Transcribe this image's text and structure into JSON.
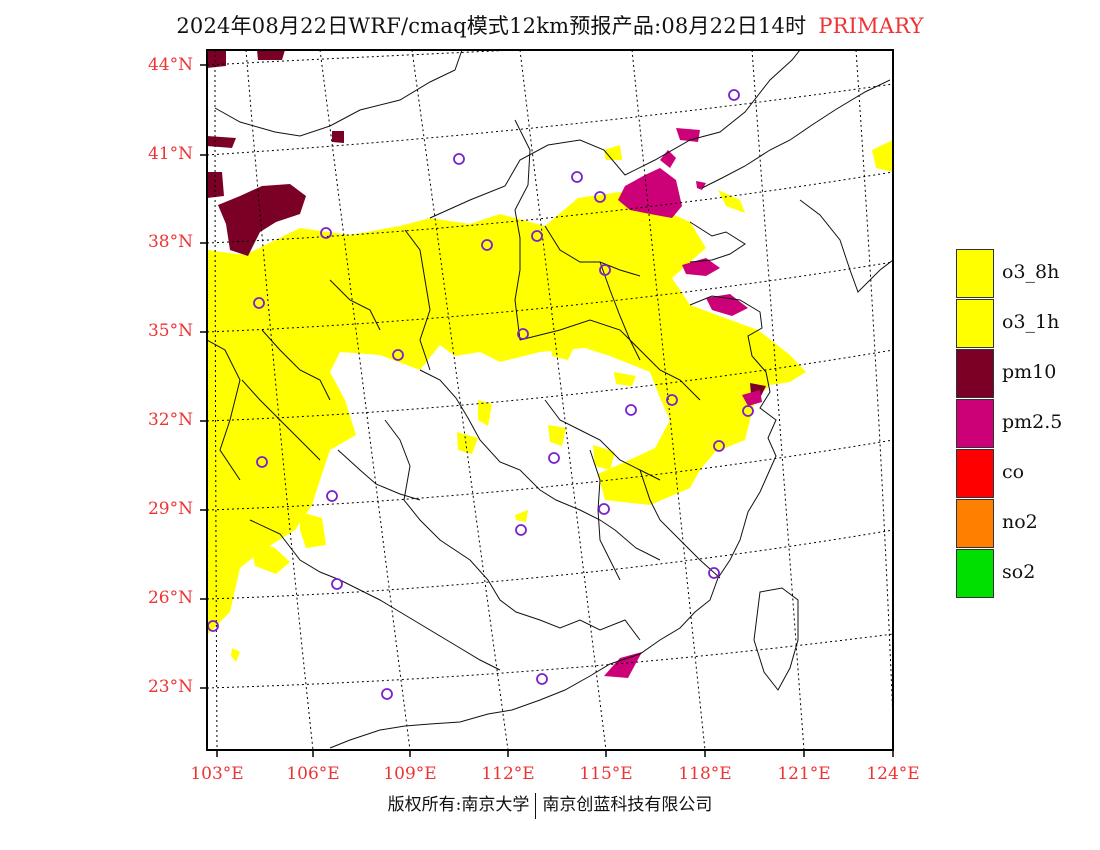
{
  "title": {
    "text": "2024年08月22日WRF/cmaq模式12km预报产品:08月22日14时",
    "tag": "PRIMARY"
  },
  "map": {
    "lat_labels": [
      "44°N",
      "41°N",
      "38°N",
      "35°N",
      "32°N",
      "29°N",
      "26°N",
      "23°N"
    ],
    "lon_labels": [
      "103°E",
      "106°E",
      "109°E",
      "112°E",
      "115°E",
      "118°E",
      "121°E",
      "124°E"
    ],
    "colors": {
      "frame": "#000000",
      "grid": "#000000",
      "border": "#111111",
      "station": "#7a22cc",
      "label": "#ee3333"
    }
  },
  "legend": {
    "items": [
      {
        "label": "o3_8h",
        "color": "#ffff00"
      },
      {
        "label": "o3_1h",
        "color": "#ffff00"
      },
      {
        "label": "pm10",
        "color": "#7b0026"
      },
      {
        "label": "pm2.5",
        "color": "#cc0077"
      },
      {
        "label": "co",
        "color": "#ff0000"
      },
      {
        "label": "no2",
        "color": "#ff7f00"
      },
      {
        "label": "so2",
        "color": "#00e000"
      }
    ]
  },
  "copyright": {
    "left": "版权所有:南京大学",
    "right": "南京创蓝科技有限公司"
  }
}
